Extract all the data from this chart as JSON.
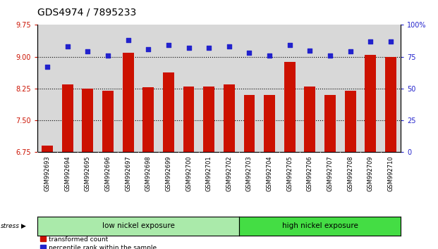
{
  "title": "GDS4974 / 7895233",
  "samples": [
    "GSM992693",
    "GSM992694",
    "GSM992695",
    "GSM992696",
    "GSM992697",
    "GSM992698",
    "GSM992699",
    "GSM992700",
    "GSM992701",
    "GSM992702",
    "GSM992703",
    "GSM992704",
    "GSM992705",
    "GSM992706",
    "GSM992707",
    "GSM992708",
    "GSM992709",
    "GSM992710"
  ],
  "bar_values": [
    6.9,
    8.35,
    8.25,
    8.2,
    9.1,
    8.28,
    8.62,
    8.3,
    8.3,
    8.35,
    8.1,
    8.1,
    8.88,
    8.3,
    8.1,
    8.2,
    9.05,
    9.0
  ],
  "dot_values": [
    67,
    83,
    79,
    76,
    88,
    81,
    84,
    82,
    82,
    83,
    78,
    76,
    84,
    80,
    76,
    79,
    87,
    87
  ],
  "ylim_left": [
    6.75,
    9.75
  ],
  "ylim_right": [
    0,
    100
  ],
  "yticks_left": [
    6.75,
    7.5,
    8.25,
    9.0,
    9.75
  ],
  "yticks_right": [
    0,
    25,
    50,
    75,
    100
  ],
  "bar_color": "#cc1100",
  "dot_color": "#2222cc",
  "bg_plot": "#d8d8d8",
  "bg_figure": "#ffffff",
  "group1_label": "low nickel exposure",
  "group2_label": "high nickel exposure",
  "group1_color": "#aaeaaa",
  "group2_color": "#44dd44",
  "group1_count": 10,
  "group2_count": 8,
  "stress_label": "stress",
  "legend_bar": "transformed count",
  "legend_dot": "percentile rank within the sample",
  "hlines": [
    9.0,
    8.25,
    7.5
  ],
  "title_fontsize": 10,
  "tick_fontsize": 7,
  "sample_label_fontsize": 6,
  "axis_label_color_left": "#cc1100",
  "axis_label_color_right": "#2222cc"
}
